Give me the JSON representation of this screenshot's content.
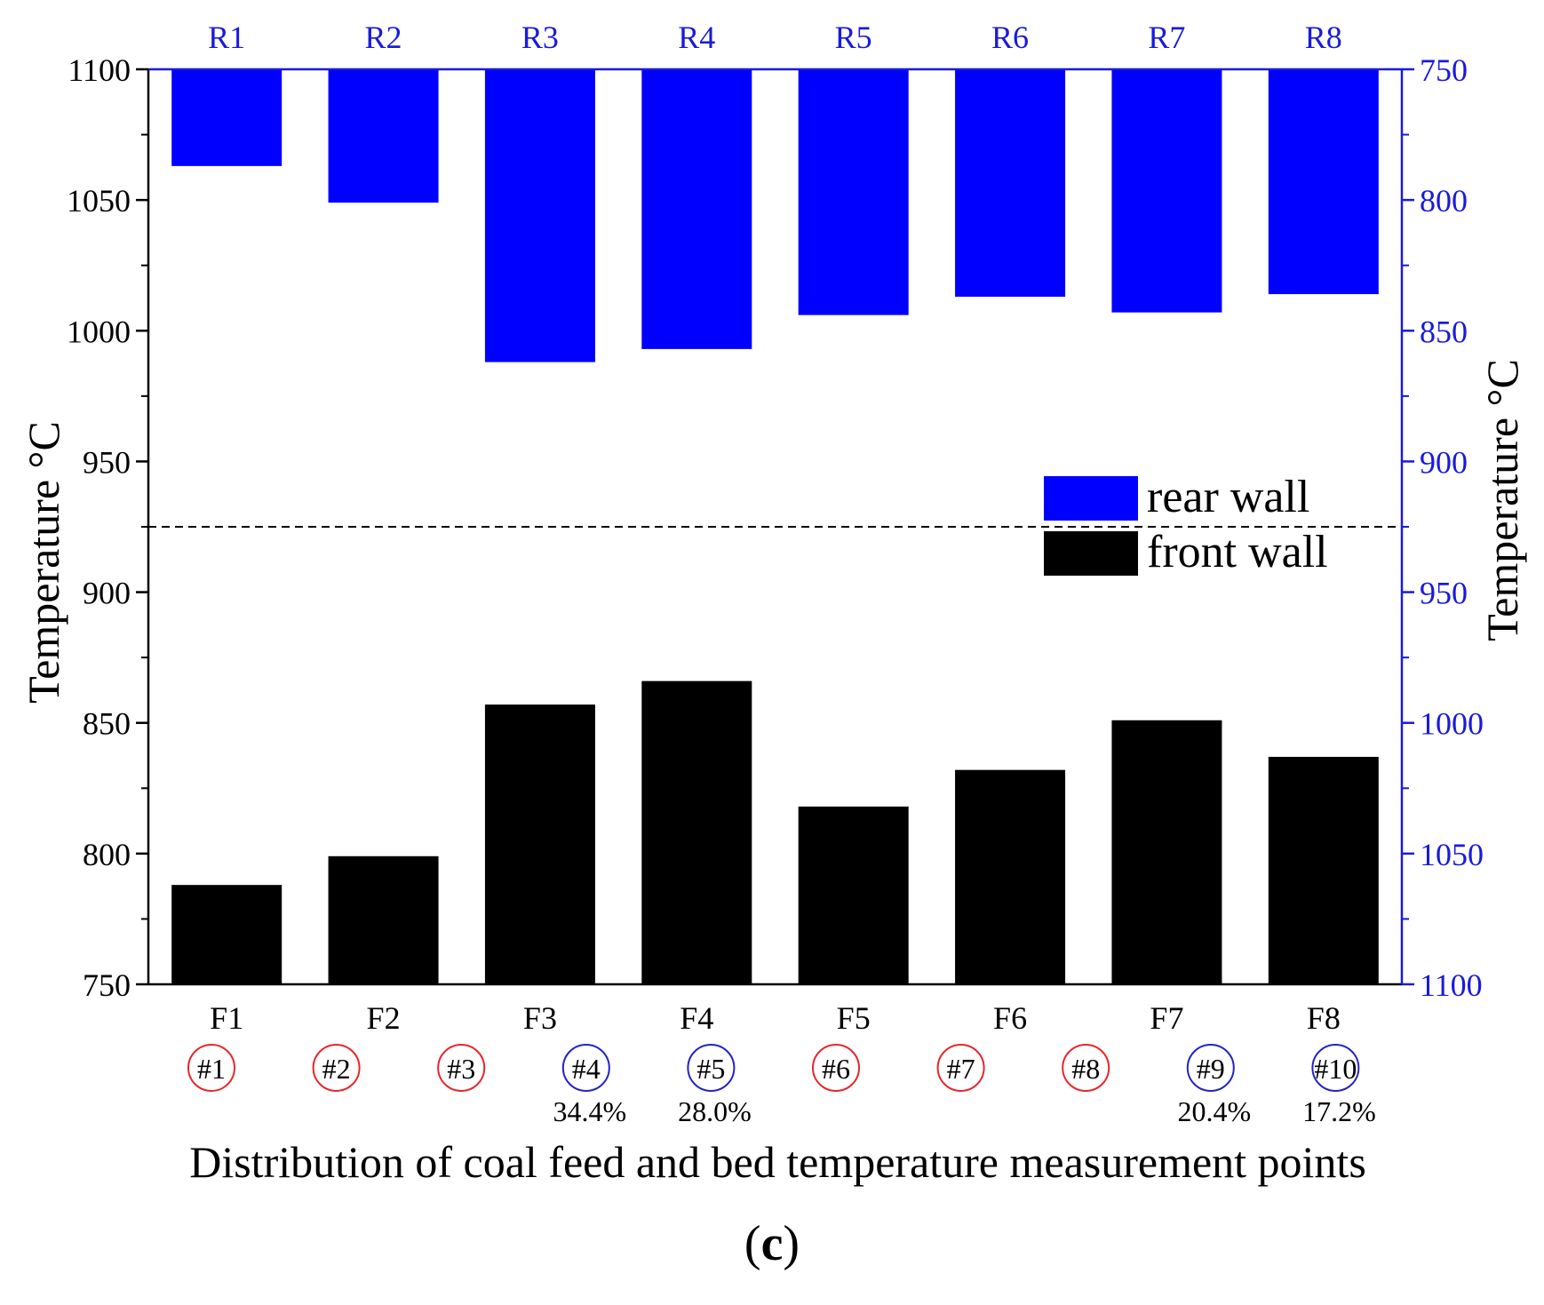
{
  "chart_data": {
    "type": "bar",
    "title": "",
    "xlabel": "Distribution of coal feed and bed temperature measurement points",
    "ylabel_left": "Temperature °C",
    "ylabel_right": "Temperature °C",
    "ylim_left": [
      750,
      1100
    ],
    "ylim_right_inverted": [
      750,
      1100
    ],
    "yticks_left": [
      750,
      800,
      850,
      900,
      950,
      1000,
      1050,
      1100
    ],
    "yticks_right": [
      750,
      800,
      850,
      900,
      950,
      1000,
      1050,
      1100
    ],
    "reference_line_left_value": 925,
    "front_wall": {
      "name": "front wall",
      "color": "#000000",
      "categories": [
        "F1",
        "F2",
        "F3",
        "F4",
        "F5",
        "F6",
        "F7",
        "F8"
      ],
      "values": [
        788,
        799,
        857,
        866,
        818,
        832,
        851,
        837
      ]
    },
    "rear_wall": {
      "name": "rear wall",
      "color": "#0000ff",
      "categories": [
        "R1",
        "R2",
        "R3",
        "R4",
        "R5",
        "R6",
        "R7",
        "R8"
      ],
      "values": [
        787,
        801,
        862,
        857,
        844,
        837,
        843,
        836
      ]
    },
    "legend": {
      "position": "right-middle",
      "entries": [
        {
          "label": "rear wall",
          "color": "#0000ff"
        },
        {
          "label": "front wall",
          "color": "#000000"
        }
      ]
    },
    "feed_points": [
      {
        "label": "#1",
        "color": "#e8262a",
        "share": ""
      },
      {
        "label": "#2",
        "color": "#e8262a",
        "share": ""
      },
      {
        "label": "#3",
        "color": "#e8262a",
        "share": ""
      },
      {
        "label": "#4",
        "color": "#2323c8",
        "share": "34.4%"
      },
      {
        "label": "#5",
        "color": "#2323c8",
        "share": "28.0%"
      },
      {
        "label": "#6",
        "color": "#e8262a",
        "share": ""
      },
      {
        "label": "#7",
        "color": "#e8262a",
        "share": ""
      },
      {
        "label": "#8",
        "color": "#e8262a",
        "share": ""
      },
      {
        "label": "#9",
        "color": "#2323c8",
        "share": "20.4%"
      },
      {
        "label": "#10",
        "color": "#2323c8",
        "share": "17.2%"
      }
    ]
  },
  "caption": {
    "open": "(",
    "letter": "c",
    "close": ")"
  },
  "colors": {
    "right_axis": "#1a1adc",
    "top_labels": "#1a1adc"
  }
}
